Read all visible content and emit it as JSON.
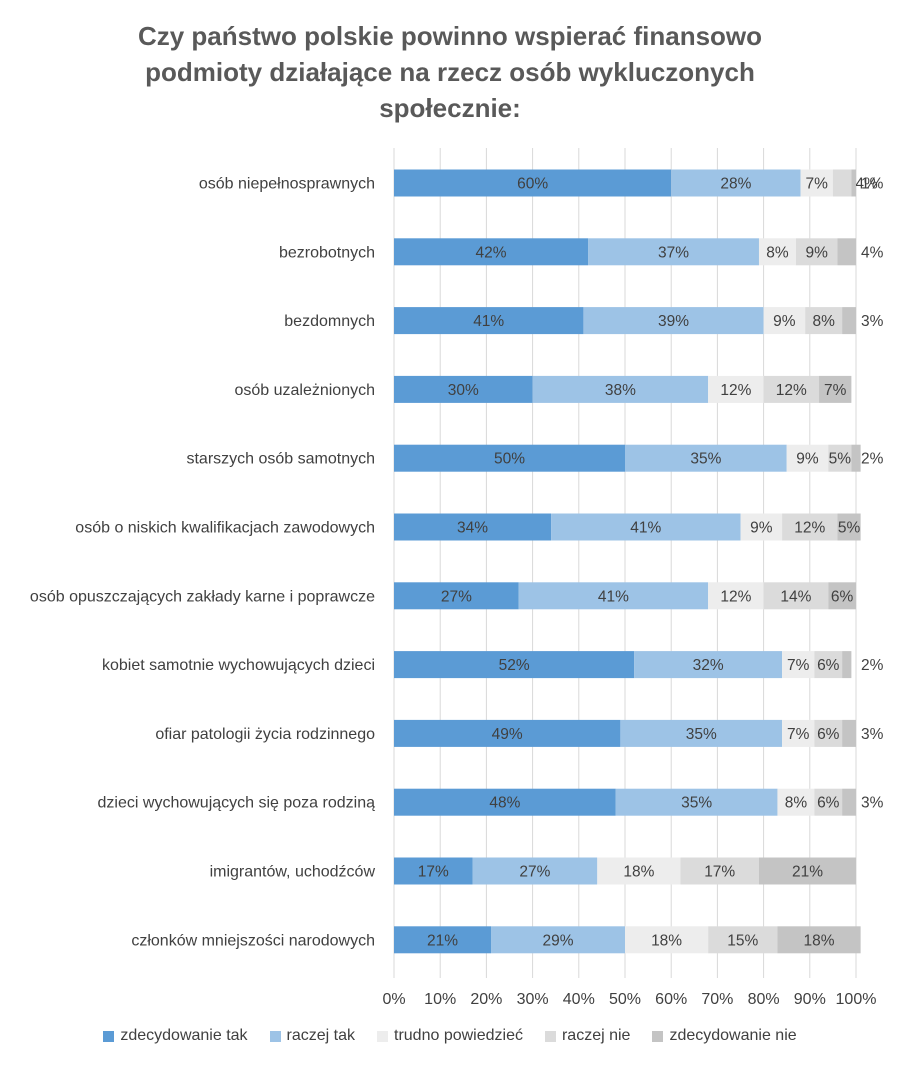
{
  "chart_data": {
    "type": "bar",
    "orientation": "horizontal",
    "stacked": "percent",
    "title": "Czy państwo polskie powinno wspierać finansowo podmioty działające na rzecz osób wykluczonych społecznie:",
    "title_lines": [
      "Czy państwo polskie powinno wspierać finansowo",
      "podmioty działające na rzecz osób wykluczonych",
      "społecznie:"
    ],
    "xlabel": "",
    "ylabel": "",
    "xlim": [
      0,
      100
    ],
    "x_ticks": [
      "0%",
      "10%",
      "20%",
      "30%",
      "40%",
      "50%",
      "60%",
      "70%",
      "80%",
      "90%",
      "100%"
    ],
    "grid": true,
    "legend_position": "bottom",
    "categories": [
      "osób niepełnosprawnych",
      "bezrobotnych",
      "bezdomnych",
      "osób uzależnionych",
      "starszych osób samotnych",
      "osób o niskich kwalifikacjach zawodowych",
      "osób opuszczających zakłady karne i poprawcze",
      "kobiet samotnie wychowujących dzieci",
      "ofiar patologii życia rodzinnego",
      "dzieci wychowujących się poza rodziną",
      "imigrantów, uchodźców",
      "członków mniejszości narodowych"
    ],
    "series": [
      {
        "name": "zdecydowanie tak",
        "color": "#5b9bd5",
        "values": [
          60,
          42,
          41,
          30,
          50,
          34,
          27,
          52,
          49,
          48,
          17,
          21
        ]
      },
      {
        "name": "raczej tak",
        "color": "#9dc3e6",
        "values": [
          28,
          37,
          39,
          38,
          35,
          41,
          41,
          32,
          35,
          35,
          27,
          29
        ]
      },
      {
        "name": "trudno powiedzieć",
        "color": "#ededed",
        "values": [
          7,
          8,
          9,
          12,
          9,
          9,
          12,
          7,
          7,
          8,
          18,
          18
        ]
      },
      {
        "name": "raczej nie",
        "color": "#dbdbdb",
        "values": [
          4,
          9,
          8,
          12,
          5,
          12,
          14,
          6,
          6,
          6,
          17,
          15
        ]
      },
      {
        "name": "zdecydowanie nie",
        "color": "#c4c4c4",
        "values": [
          1,
          4,
          3,
          7,
          2,
          5,
          6,
          2,
          3,
          3,
          21,
          18
        ]
      }
    ]
  }
}
